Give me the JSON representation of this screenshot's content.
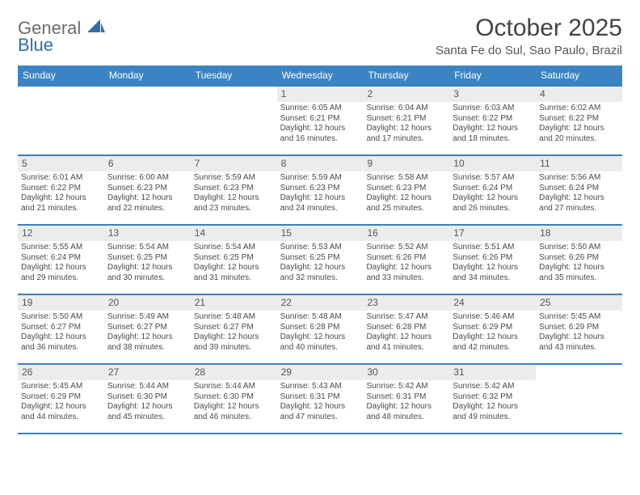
{
  "logo": {
    "line1": "General",
    "line2": "Blue"
  },
  "title": "October 2025",
  "location": "Santa Fe do Sul, Sao Paulo, Brazil",
  "colors": {
    "header_bg": "#3b84c4",
    "border": "#3b7fbd",
    "daynum_bg": "#ececec",
    "text": "#4a4a4a",
    "logo_gray": "#6b6b6b",
    "logo_blue": "#2f6fa8"
  },
  "weekdays": [
    "Sunday",
    "Monday",
    "Tuesday",
    "Wednesday",
    "Thursday",
    "Friday",
    "Saturday"
  ],
  "weeks": [
    [
      {
        "n": "",
        "lines": []
      },
      {
        "n": "",
        "lines": []
      },
      {
        "n": "",
        "lines": []
      },
      {
        "n": "1",
        "lines": [
          "Sunrise: 6:05 AM",
          "Sunset: 6:21 PM",
          "Daylight: 12 hours and 16 minutes."
        ]
      },
      {
        "n": "2",
        "lines": [
          "Sunrise: 6:04 AM",
          "Sunset: 6:21 PM",
          "Daylight: 12 hours and 17 minutes."
        ]
      },
      {
        "n": "3",
        "lines": [
          "Sunrise: 6:03 AM",
          "Sunset: 6:22 PM",
          "Daylight: 12 hours and 18 minutes."
        ]
      },
      {
        "n": "4",
        "lines": [
          "Sunrise: 6:02 AM",
          "Sunset: 6:22 PM",
          "Daylight: 12 hours and 20 minutes."
        ]
      }
    ],
    [
      {
        "n": "5",
        "lines": [
          "Sunrise: 6:01 AM",
          "Sunset: 6:22 PM",
          "Daylight: 12 hours and 21 minutes."
        ]
      },
      {
        "n": "6",
        "lines": [
          "Sunrise: 6:00 AM",
          "Sunset: 6:23 PM",
          "Daylight: 12 hours and 22 minutes."
        ]
      },
      {
        "n": "7",
        "lines": [
          "Sunrise: 5:59 AM",
          "Sunset: 6:23 PM",
          "Daylight: 12 hours and 23 minutes."
        ]
      },
      {
        "n": "8",
        "lines": [
          "Sunrise: 5:59 AM",
          "Sunset: 6:23 PM",
          "Daylight: 12 hours and 24 minutes."
        ]
      },
      {
        "n": "9",
        "lines": [
          "Sunrise: 5:58 AM",
          "Sunset: 6:23 PM",
          "Daylight: 12 hours and 25 minutes."
        ]
      },
      {
        "n": "10",
        "lines": [
          "Sunrise: 5:57 AM",
          "Sunset: 6:24 PM",
          "Daylight: 12 hours and 26 minutes."
        ]
      },
      {
        "n": "11",
        "lines": [
          "Sunrise: 5:56 AM",
          "Sunset: 6:24 PM",
          "Daylight: 12 hours and 27 minutes."
        ]
      }
    ],
    [
      {
        "n": "12",
        "lines": [
          "Sunrise: 5:55 AM",
          "Sunset: 6:24 PM",
          "Daylight: 12 hours and 29 minutes."
        ]
      },
      {
        "n": "13",
        "lines": [
          "Sunrise: 5:54 AM",
          "Sunset: 6:25 PM",
          "Daylight: 12 hours and 30 minutes."
        ]
      },
      {
        "n": "14",
        "lines": [
          "Sunrise: 5:54 AM",
          "Sunset: 6:25 PM",
          "Daylight: 12 hours and 31 minutes."
        ]
      },
      {
        "n": "15",
        "lines": [
          "Sunrise: 5:53 AM",
          "Sunset: 6:25 PM",
          "Daylight: 12 hours and 32 minutes."
        ]
      },
      {
        "n": "16",
        "lines": [
          "Sunrise: 5:52 AM",
          "Sunset: 6:26 PM",
          "Daylight: 12 hours and 33 minutes."
        ]
      },
      {
        "n": "17",
        "lines": [
          "Sunrise: 5:51 AM",
          "Sunset: 6:26 PM",
          "Daylight: 12 hours and 34 minutes."
        ]
      },
      {
        "n": "18",
        "lines": [
          "Sunrise: 5:50 AM",
          "Sunset: 6:26 PM",
          "Daylight: 12 hours and 35 minutes."
        ]
      }
    ],
    [
      {
        "n": "19",
        "lines": [
          "Sunrise: 5:50 AM",
          "Sunset: 6:27 PM",
          "Daylight: 12 hours and 36 minutes."
        ]
      },
      {
        "n": "20",
        "lines": [
          "Sunrise: 5:49 AM",
          "Sunset: 6:27 PM",
          "Daylight: 12 hours and 38 minutes."
        ]
      },
      {
        "n": "21",
        "lines": [
          "Sunrise: 5:48 AM",
          "Sunset: 6:27 PM",
          "Daylight: 12 hours and 39 minutes."
        ]
      },
      {
        "n": "22",
        "lines": [
          "Sunrise: 5:48 AM",
          "Sunset: 6:28 PM",
          "Daylight: 12 hours and 40 minutes."
        ]
      },
      {
        "n": "23",
        "lines": [
          "Sunrise: 5:47 AM",
          "Sunset: 6:28 PM",
          "Daylight: 12 hours and 41 minutes."
        ]
      },
      {
        "n": "24",
        "lines": [
          "Sunrise: 5:46 AM",
          "Sunset: 6:29 PM",
          "Daylight: 12 hours and 42 minutes."
        ]
      },
      {
        "n": "25",
        "lines": [
          "Sunrise: 5:45 AM",
          "Sunset: 6:29 PM",
          "Daylight: 12 hours and 43 minutes."
        ]
      }
    ],
    [
      {
        "n": "26",
        "lines": [
          "Sunrise: 5:45 AM",
          "Sunset: 6:29 PM",
          "Daylight: 12 hours and 44 minutes."
        ]
      },
      {
        "n": "27",
        "lines": [
          "Sunrise: 5:44 AM",
          "Sunset: 6:30 PM",
          "Daylight: 12 hours and 45 minutes."
        ]
      },
      {
        "n": "28",
        "lines": [
          "Sunrise: 5:44 AM",
          "Sunset: 6:30 PM",
          "Daylight: 12 hours and 46 minutes."
        ]
      },
      {
        "n": "29",
        "lines": [
          "Sunrise: 5:43 AM",
          "Sunset: 6:31 PM",
          "Daylight: 12 hours and 47 minutes."
        ]
      },
      {
        "n": "30",
        "lines": [
          "Sunrise: 5:42 AM",
          "Sunset: 6:31 PM",
          "Daylight: 12 hours and 48 minutes."
        ]
      },
      {
        "n": "31",
        "lines": [
          "Sunrise: 5:42 AM",
          "Sunset: 6:32 PM",
          "Daylight: 12 hours and 49 minutes."
        ]
      },
      {
        "n": "",
        "lines": []
      }
    ]
  ]
}
